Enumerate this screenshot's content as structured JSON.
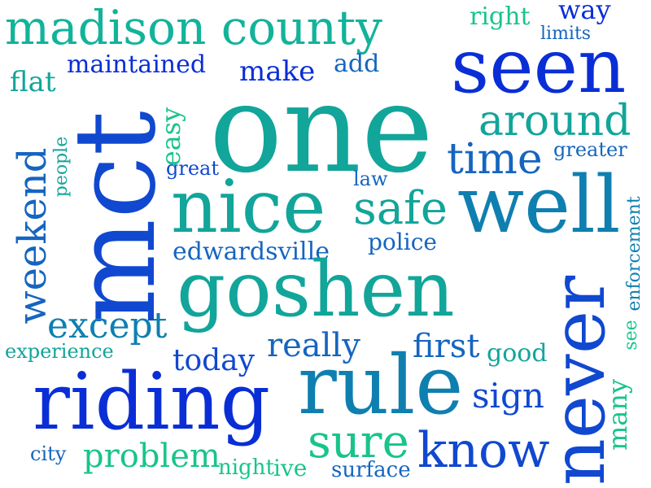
{
  "palette": {
    "deep_blue": "#0a2ed6",
    "blue": "#1565c0",
    "teal_blue": "#0f7fb0",
    "teal": "#12a59a",
    "green": "#18c48c"
  },
  "words": [
    {
      "text": "madison county",
      "color": "#12b39a"
    },
    {
      "text": "right",
      "color": "#18c48c"
    },
    {
      "text": "way",
      "color": "#0a2ed6"
    },
    {
      "text": "limits",
      "color": "#1565c0"
    },
    {
      "text": "seen",
      "color": "#0a2ed6"
    },
    {
      "text": "maintained",
      "color": "#0a2ed6"
    },
    {
      "text": "make",
      "color": "#0a2ed6"
    },
    {
      "text": "add",
      "color": "#1565c0"
    },
    {
      "text": "flat",
      "color": "#12a59a"
    },
    {
      "text": "one",
      "color": "#12a59a"
    },
    {
      "text": "around",
      "color": "#12a59a"
    },
    {
      "text": "mct",
      "color": "#1048d0"
    },
    {
      "text": "easy",
      "color": "#18c48c"
    },
    {
      "text": "time",
      "color": "#1565c0"
    },
    {
      "text": "greater",
      "color": "#1565c0"
    },
    {
      "text": "weekend",
      "color": "#1565c0"
    },
    {
      "text": "people",
      "color": "#12a59a"
    },
    {
      "text": "great",
      "color": "#1048d0"
    },
    {
      "text": "law",
      "color": "#1565c0"
    },
    {
      "text": "nice",
      "color": "#12a59a"
    },
    {
      "text": "safe",
      "color": "#12a59a"
    },
    {
      "text": "well",
      "color": "#0f7fb0"
    },
    {
      "text": "enforcement",
      "color": "#0f7fb0"
    },
    {
      "text": "police",
      "color": "#1565c0"
    },
    {
      "text": "edwardsville",
      "color": "#1565c0"
    },
    {
      "text": "goshen",
      "color": "#12a59a"
    },
    {
      "text": "never",
      "color": "#1048d0"
    },
    {
      "text": "except",
      "color": "#0f7fb0"
    },
    {
      "text": "see",
      "color": "#18c48c"
    },
    {
      "text": "really",
      "color": "#1565c0"
    },
    {
      "text": "experience",
      "color": "#12a59a"
    },
    {
      "text": "first",
      "color": "#1565c0"
    },
    {
      "text": "good",
      "color": "#12a59a"
    },
    {
      "text": "today",
      "color": "#1048d0"
    },
    {
      "text": "rule",
      "color": "#0f7fb0"
    },
    {
      "text": "many",
      "color": "#18c48c"
    },
    {
      "text": "sign",
      "color": "#1048d0"
    },
    {
      "text": "riding",
      "color": "#0a2ed6"
    },
    {
      "text": "sure",
      "color": "#18c48c"
    },
    {
      "text": "know",
      "color": "#1048d0"
    },
    {
      "text": "city",
      "color": "#1565c0"
    },
    {
      "text": "problem",
      "color": "#18c48c"
    },
    {
      "text": "night",
      "color": "#18c48c"
    },
    {
      "text": "ive",
      "color": "#18c48c"
    },
    {
      "text": "surface",
      "color": "#1565c0"
    }
  ]
}
